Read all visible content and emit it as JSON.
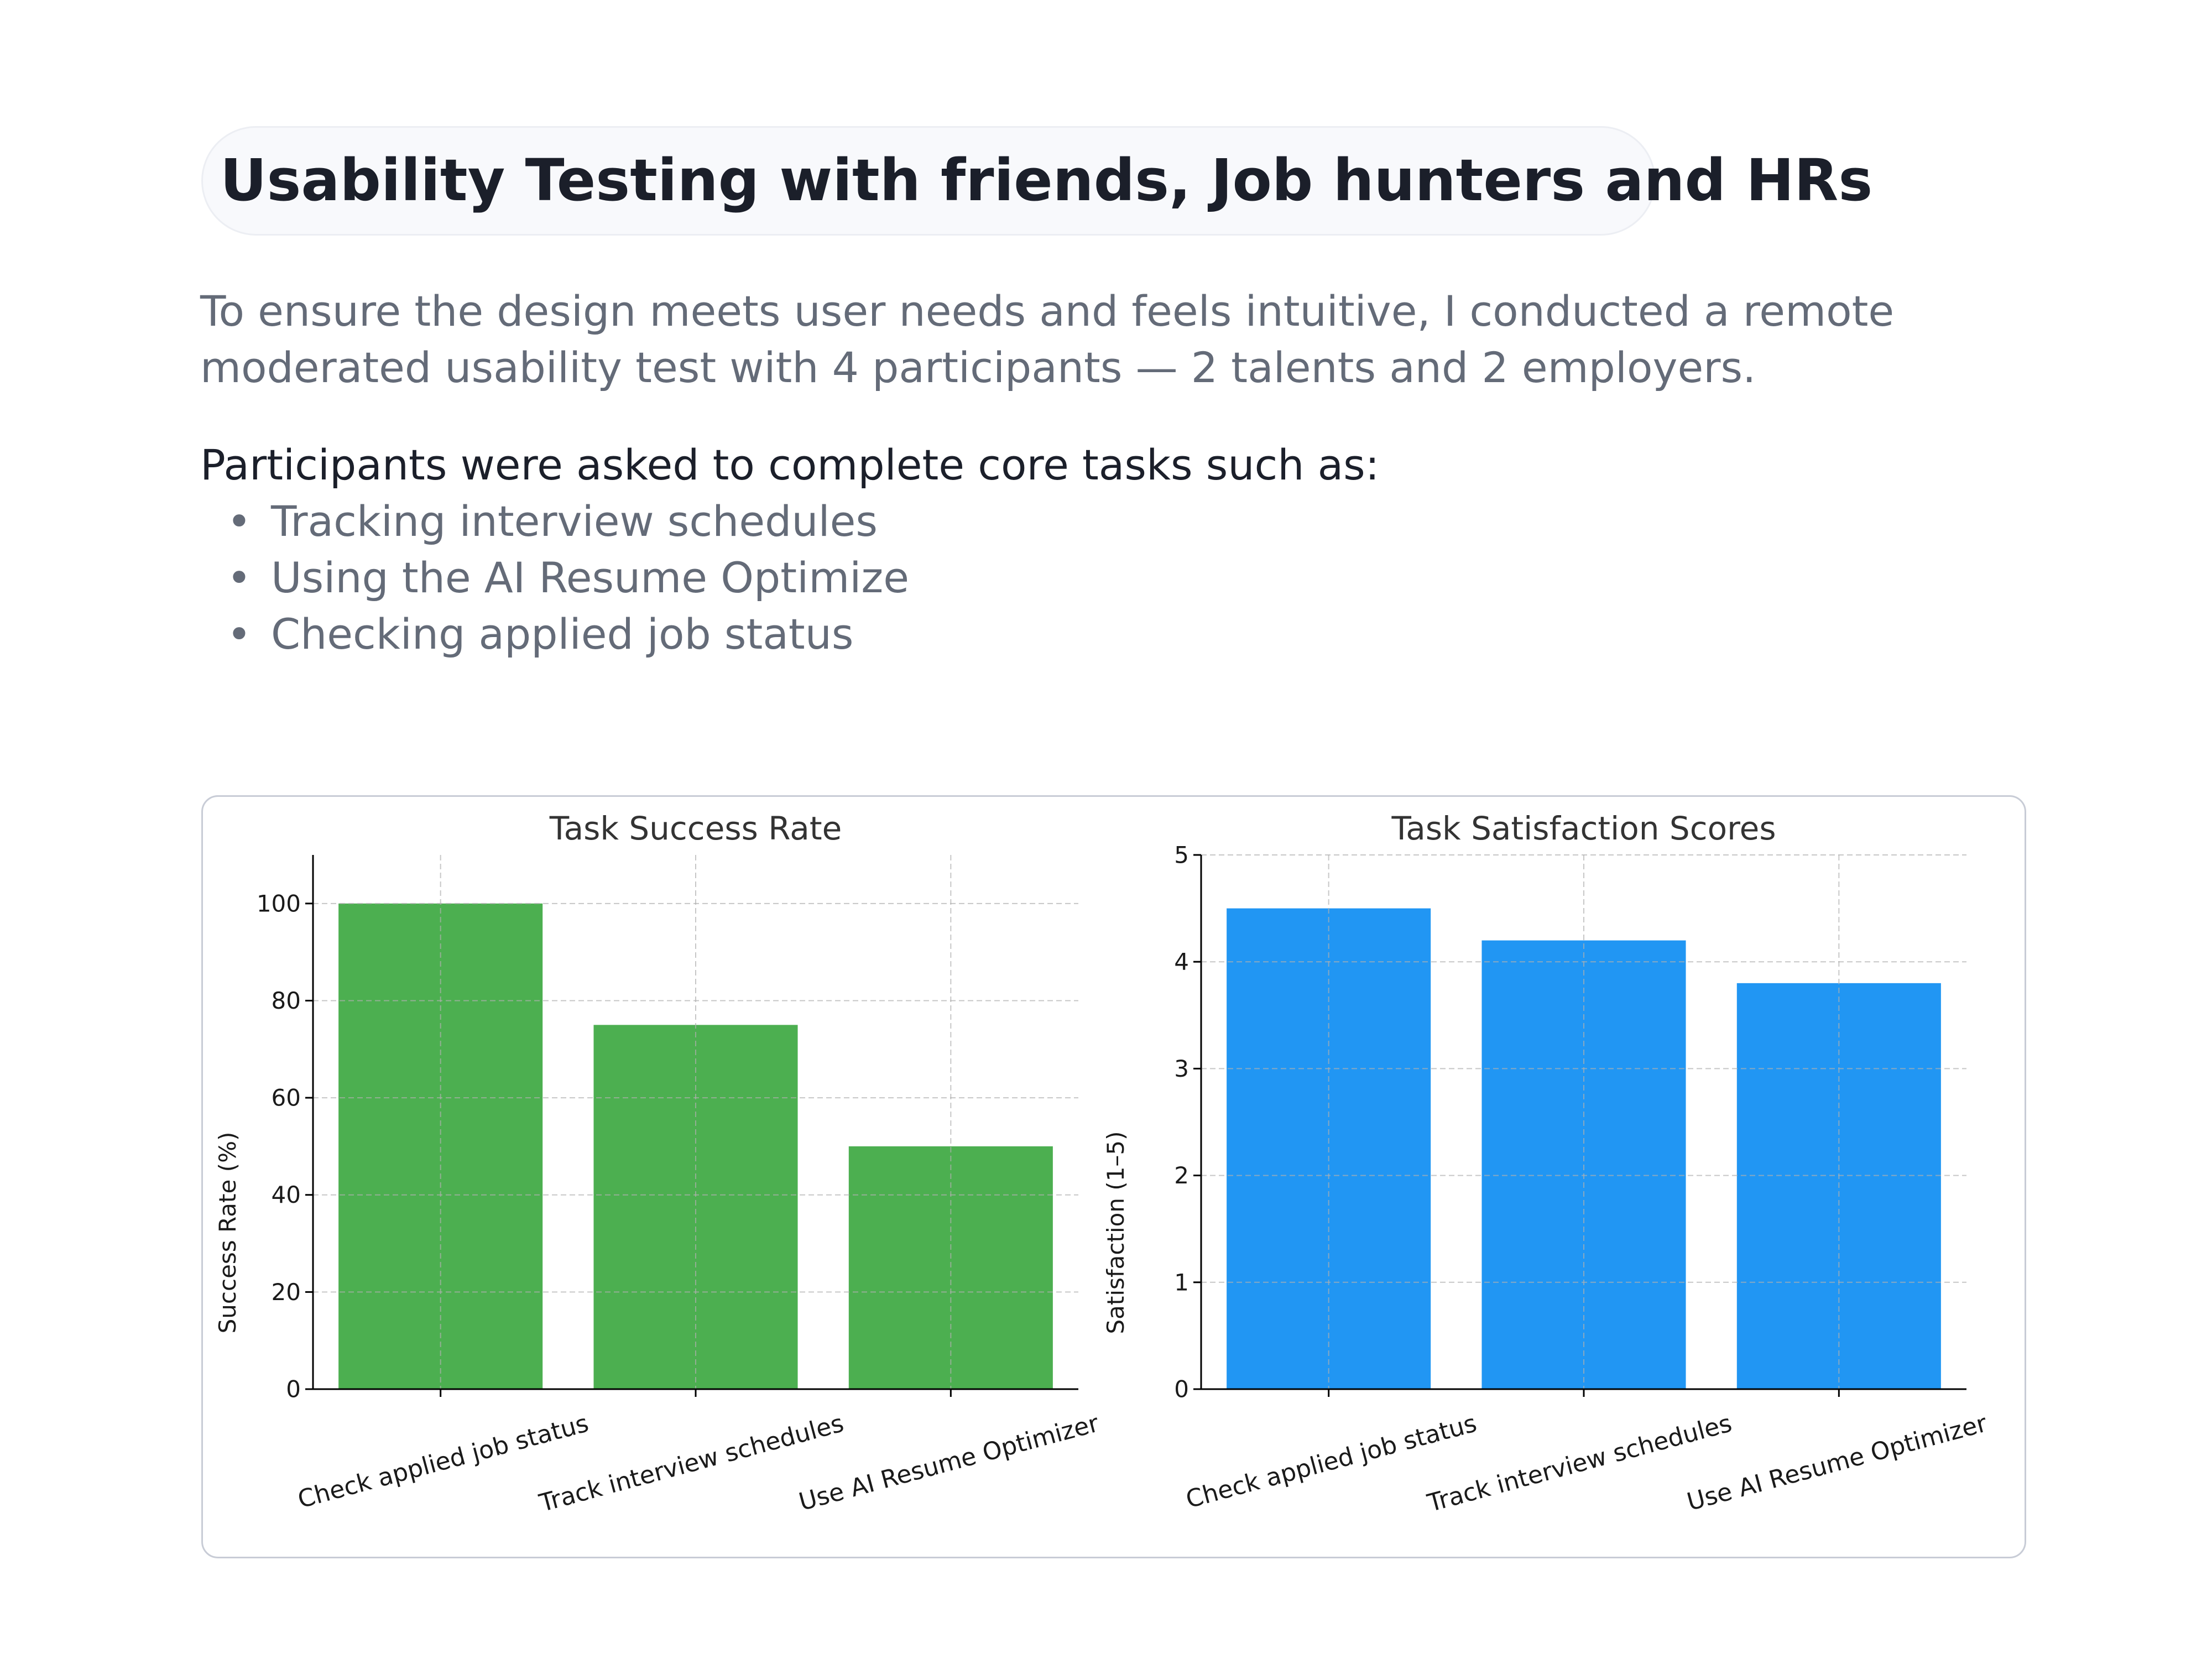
{
  "header": {
    "title": "Usability Testing with friends, Job hunters and HRs"
  },
  "intro": {
    "line1": "To ensure the design meets user needs and feels intuitive, I conducted a remote",
    "line2": "moderated usability test with 4 participants — 2 talents and 2 employers."
  },
  "tasks": {
    "lead": "Participants were asked to complete core tasks such as:",
    "bullet": "•",
    "items": [
      "Tracking interview schedules",
      "Using the AI Resume Optimize",
      "Checking applied job status"
    ]
  },
  "chart_data": [
    {
      "type": "bar",
      "title": "Task Success Rate",
      "xlabel": "",
      "ylabel": "Success Rate (%)",
      "categories": [
        "Check applied job status",
        "Track interview schedules",
        "Use AI Resume Optimizer"
      ],
      "values": [
        100,
        75,
        50
      ],
      "ylim": [
        0,
        110
      ],
      "yticks": [
        0,
        20,
        40,
        60,
        80,
        100
      ],
      "grid": true,
      "color": "#4caf50"
    },
    {
      "type": "bar",
      "title": "Task Satisfaction Scores",
      "xlabel": "",
      "ylabel": "Satisfaction (1–5)",
      "categories": [
        "Check applied job status",
        "Track interview schedules",
        "Use AI Resume Optimizer"
      ],
      "values": [
        4.5,
        4.2,
        3.8
      ],
      "ylim": [
        0,
        5
      ],
      "yticks": [
        0,
        1,
        2,
        3,
        4,
        5
      ],
      "grid": true,
      "color": "#2196f3"
    }
  ]
}
